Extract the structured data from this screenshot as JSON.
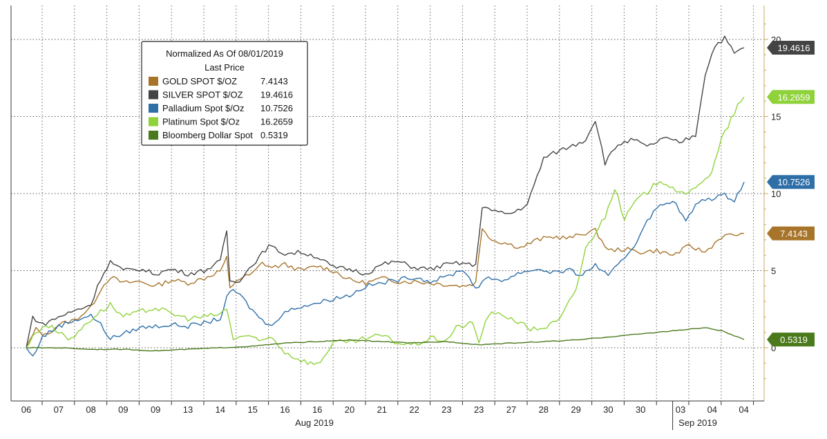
{
  "chart_data": {
    "type": "line",
    "legend": {
      "title": "Normalized As Of 08/01/2019",
      "subtitle": "Last Price",
      "placement": "top-left"
    },
    "x_labels": [
      "06",
      "07",
      "08",
      "09",
      "09",
      "13",
      "14",
      "15",
      "16",
      "16",
      "20",
      "21",
      "22",
      "23",
      "23",
      "27",
      "28",
      "29",
      "30",
      "30",
      "03",
      "04",
      "04"
    ],
    "month_labels": [
      {
        "text": "Aug 2019",
        "index_span": [
          0,
          19.5
        ]
      },
      {
        "text": "Sep 2019",
        "index_span": [
          19.5,
          22.6
        ]
      }
    ],
    "ylim": [
      -3,
      22
    ],
    "yticks": [
      0,
      5,
      10,
      15,
      20
    ],
    "grid": true,
    "series": [
      {
        "name": "GOLD SPOT $/OZ",
        "color": "#a8742a",
        "last": "7.4143",
        "points": [
          [
            0,
            0
          ],
          [
            0.3,
            1.2
          ],
          [
            0.6,
            0.8
          ],
          [
            1,
            1.5
          ],
          [
            1.5,
            1.8
          ],
          [
            2,
            2.6
          ],
          [
            2.3,
            3.8
          ],
          [
            2.6,
            4.6
          ],
          [
            3,
            4.2
          ],
          [
            3.5,
            4.3
          ],
          [
            4,
            4.0
          ],
          [
            4.5,
            4.4
          ],
          [
            5,
            4.2
          ],
          [
            5.5,
            4.5
          ],
          [
            6,
            5.0
          ],
          [
            6.2,
            5.8
          ],
          [
            6.3,
            3.8
          ],
          [
            6.5,
            4.4
          ],
          [
            7,
            4.8
          ],
          [
            7.3,
            5.5
          ],
          [
            7.6,
            5.2
          ],
          [
            8,
            5.4
          ],
          [
            8.5,
            5.0
          ],
          [
            9,
            5.3
          ],
          [
            9.5,
            5.0
          ],
          [
            10,
            4.4
          ],
          [
            10.5,
            4.2
          ],
          [
            11,
            4.5
          ],
          [
            11.5,
            4.3
          ],
          [
            12,
            4.3
          ],
          [
            12.5,
            4.2
          ],
          [
            13,
            4.1
          ],
          [
            13.5,
            4.0
          ],
          [
            13.9,
            4.2
          ],
          [
            14.1,
            7.8
          ],
          [
            14.4,
            7.0
          ],
          [
            14.8,
            6.8
          ],
          [
            15.3,
            6.5
          ],
          [
            15.8,
            7.0
          ],
          [
            16.3,
            7.2
          ],
          [
            16.8,
            7.1
          ],
          [
            17.2,
            7.4
          ],
          [
            17.6,
            7.6
          ],
          [
            18.0,
            6.3
          ],
          [
            18.5,
            6.4
          ],
          [
            19,
            6.2
          ],
          [
            19.5,
            6.3
          ],
          [
            20,
            6.0
          ],
          [
            20.5,
            6.6
          ],
          [
            21,
            6.2
          ],
          [
            21.5,
            7.2
          ],
          [
            21.8,
            7.3
          ],
          [
            22.2,
            7.4143
          ]
        ]
      },
      {
        "name": "SILVER SPOT $/OZ",
        "color": "#444444",
        "last": "19.4616",
        "points": [
          [
            0,
            0
          ],
          [
            0.2,
            2.0
          ],
          [
            0.5,
            1.5
          ],
          [
            1,
            2.0
          ],
          [
            1.5,
            2.4
          ],
          [
            2,
            2.8
          ],
          [
            2.3,
            4.5
          ],
          [
            2.6,
            5.6
          ],
          [
            3,
            5.0
          ],
          [
            3.5,
            5.1
          ],
          [
            4,
            4.8
          ],
          [
            4.5,
            5.1
          ],
          [
            5,
            4.8
          ],
          [
            5.5,
            5.0
          ],
          [
            6,
            5.6
          ],
          [
            6.2,
            7.6
          ],
          [
            6.3,
            4.3
          ],
          [
            6.6,
            4.4
          ],
          [
            7,
            5.4
          ],
          [
            7.5,
            6.6
          ],
          [
            8,
            6.1
          ],
          [
            8.5,
            6.2
          ],
          [
            9,
            5.9
          ],
          [
            9.5,
            5.2
          ],
          [
            10,
            5.1
          ],
          [
            10.5,
            4.8
          ],
          [
            11,
            5.4
          ],
          [
            11.5,
            5.6
          ],
          [
            12,
            5.2
          ],
          [
            12.5,
            5.1
          ],
          [
            13,
            5.4
          ],
          [
            13.5,
            5.5
          ],
          [
            13.9,
            5.3
          ],
          [
            14.1,
            9.2
          ],
          [
            14.5,
            8.8
          ],
          [
            15,
            8.7
          ],
          [
            15.5,
            9.3
          ],
          [
            16,
            12.3
          ],
          [
            16.5,
            12.8
          ],
          [
            17,
            13.2
          ],
          [
            17.3,
            13.5
          ],
          [
            17.6,
            14.8
          ],
          [
            17.9,
            12.0
          ],
          [
            18.3,
            13.2
          ],
          [
            18.8,
            13.5
          ],
          [
            19.2,
            13.0
          ],
          [
            19.7,
            13.6
          ],
          [
            20.2,
            13.3
          ],
          [
            20.7,
            13.8
          ],
          [
            21,
            17.8
          ],
          [
            21.3,
            19.6
          ],
          [
            21.6,
            20.1
          ],
          [
            21.9,
            19.1
          ],
          [
            22.2,
            19.4616
          ]
        ]
      },
      {
        "name": "Palladium Spot $/Oz",
        "color": "#2e6fa8",
        "last": "10.7526",
        "points": [
          [
            0,
            0
          ],
          [
            0.2,
            -0.6
          ],
          [
            0.5,
            0.7
          ],
          [
            1,
            1.4
          ],
          [
            1.5,
            1.8
          ],
          [
            2,
            2.1
          ],
          [
            2.3,
            1.5
          ],
          [
            2.6,
            0.6
          ],
          [
            3,
            0.9
          ],
          [
            3.5,
            1.3
          ],
          [
            4,
            1.4
          ],
          [
            4.5,
            1.5
          ],
          [
            5,
            1.4
          ],
          [
            5.5,
            1.6
          ],
          [
            6,
            1.9
          ],
          [
            6.2,
            3.2
          ],
          [
            6.4,
            3.8
          ],
          [
            6.7,
            3.2
          ],
          [
            7,
            2.4
          ],
          [
            7.5,
            1.4
          ],
          [
            8,
            2.3
          ],
          [
            8.5,
            2.7
          ],
          [
            9,
            2.9
          ],
          [
            9.5,
            3.2
          ],
          [
            10,
            3.4
          ],
          [
            10.5,
            4.0
          ],
          [
            11,
            4.2
          ],
          [
            11.5,
            4.4
          ],
          [
            12,
            4.6
          ],
          [
            12.5,
            4.3
          ],
          [
            13,
            4.6
          ],
          [
            13.5,
            5.1
          ],
          [
            13.9,
            3.9
          ],
          [
            14.3,
            4.5
          ],
          [
            14.8,
            4.4
          ],
          [
            15.3,
            4.9
          ],
          [
            15.8,
            5.1
          ],
          [
            16.3,
            4.9
          ],
          [
            16.8,
            5.0
          ],
          [
            17.2,
            4.7
          ],
          [
            17.6,
            5.4
          ],
          [
            18.0,
            4.6
          ],
          [
            18.4,
            5.6
          ],
          [
            18.8,
            6.6
          ],
          [
            19.2,
            8.3
          ],
          [
            19.6,
            9.2
          ],
          [
            20,
            9.6
          ],
          [
            20.4,
            8.2
          ],
          [
            20.8,
            9.5
          ],
          [
            21.2,
            9.7
          ],
          [
            21.6,
            9.9
          ],
          [
            21.9,
            9.6
          ],
          [
            22.2,
            10.7526
          ]
        ]
      },
      {
        "name": "Platinum Spot $/Oz",
        "color": "#8fd23a",
        "last": "16.2659",
        "points": [
          [
            0,
            0
          ],
          [
            0.3,
            1.0
          ],
          [
            0.6,
            1.5
          ],
          [
            1,
            1.1
          ],
          [
            1.4,
            0.5
          ],
          [
            1.8,
            1.5
          ],
          [
            2.2,
            2.2
          ],
          [
            2.6,
            2.8
          ],
          [
            3,
            2.0
          ],
          [
            3.5,
            2.3
          ],
          [
            4,
            2.6
          ],
          [
            4.5,
            2.2
          ],
          [
            5,
            1.9
          ],
          [
            5.5,
            2.0
          ],
          [
            6,
            2.2
          ],
          [
            6.2,
            2.5
          ],
          [
            6.4,
            0.6
          ],
          [
            6.8,
            0.8
          ],
          [
            7.2,
            0.4
          ],
          [
            7.6,
            0.7
          ],
          [
            8,
            -0.3
          ],
          [
            8.5,
            -0.8
          ],
          [
            9,
            -1.1
          ],
          [
            9.2,
            -0.6
          ],
          [
            9.5,
            0.4
          ],
          [
            10,
            0.3
          ],
          [
            10.5,
            0.6
          ],
          [
            11,
            0.8
          ],
          [
            11.5,
            0.3
          ],
          [
            12,
            0.2
          ],
          [
            12.5,
            0.6
          ],
          [
            13,
            0.5
          ],
          [
            13.3,
            1.3
          ],
          [
            13.8,
            1.6
          ],
          [
            14.0,
            0.4
          ],
          [
            14.3,
            2.2
          ],
          [
            14.8,
            2.1
          ],
          [
            15.2,
            1.7
          ],
          [
            15.6,
            1.2
          ],
          [
            16.0,
            1.3
          ],
          [
            16.5,
            1.8
          ],
          [
            17.0,
            3.8
          ],
          [
            17.3,
            6.4
          ],
          [
            17.6,
            7.5
          ],
          [
            17.9,
            8.5
          ],
          [
            18.2,
            10.4
          ],
          [
            18.5,
            8.3
          ],
          [
            18.8,
            9.4
          ],
          [
            19.2,
            10.1
          ],
          [
            19.6,
            10.9
          ],
          [
            20,
            10.4
          ],
          [
            20.4,
            9.8
          ],
          [
            20.8,
            10.7
          ],
          [
            21.2,
            11.3
          ],
          [
            21.5,
            13.5
          ],
          [
            21.8,
            14.8
          ],
          [
            22.0,
            15.7
          ],
          [
            22.2,
            16.2659
          ]
        ]
      },
      {
        "name": "Bloomberg Dollar Spot",
        "color": "#4a7a1c",
        "last": "0.5319",
        "points": [
          [
            0,
            0
          ],
          [
            1,
            0
          ],
          [
            2,
            -0.1
          ],
          [
            3,
            -0.1
          ],
          [
            4,
            -0.2
          ],
          [
            5,
            -0.1
          ],
          [
            6,
            0
          ],
          [
            7,
            0.1
          ],
          [
            8,
            0.3
          ],
          [
            9,
            0.4
          ],
          [
            10,
            0.5
          ],
          [
            11,
            0.4
          ],
          [
            12,
            0.3
          ],
          [
            13,
            0.4
          ],
          [
            14,
            0.2
          ],
          [
            15,
            0.3
          ],
          [
            16,
            0.4
          ],
          [
            17,
            0.5
          ],
          [
            18,
            0.7
          ],
          [
            19,
            0.9
          ],
          [
            20,
            1.1
          ],
          [
            21,
            1.3
          ],
          [
            21.5,
            1.1
          ],
          [
            22.2,
            0.5319
          ]
        ]
      }
    ]
  }
}
